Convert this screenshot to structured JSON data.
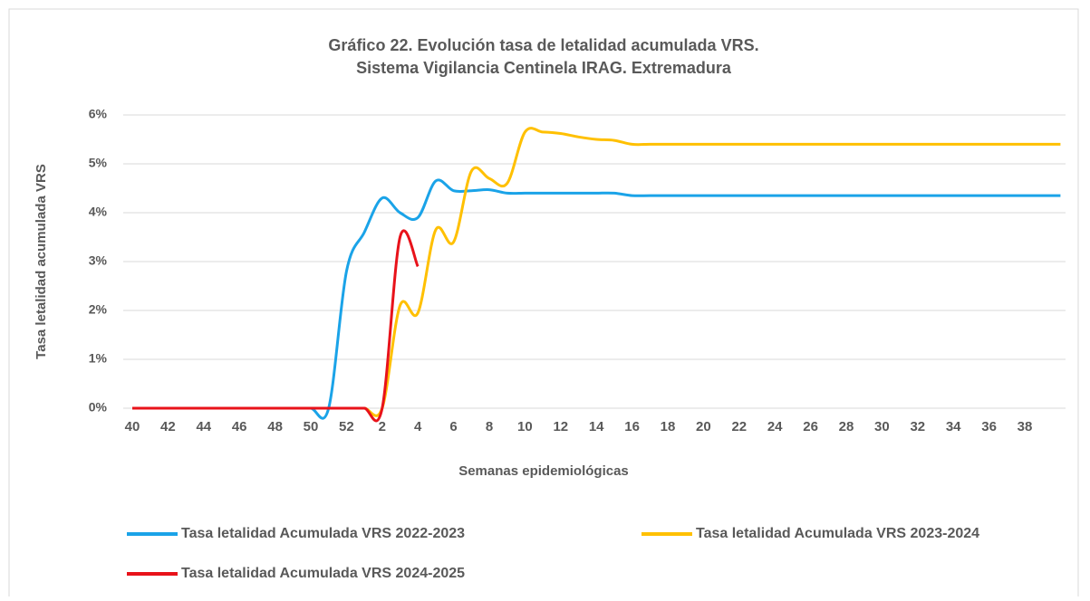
{
  "chart_data": {
    "type": "line",
    "title": [
      "Gráfico 22. Evolución tasa de letalidad acumulada VRS.",
      "Sistema Vigilancia Centinela IRAG. Extremadura"
    ],
    "x_label": "Semanas epidemiológicas",
    "y_label": "Tasa letalidad acumulada VRS",
    "categories": [
      40,
      null,
      42,
      null,
      44,
      null,
      46,
      null,
      48,
      null,
      50,
      null,
      52,
      null,
      2,
      null,
      4,
      null,
      6,
      null,
      8,
      null,
      10,
      null,
      12,
      null,
      14,
      null,
      16,
      null,
      18,
      null,
      20,
      null,
      22,
      null,
      24,
      null,
      26,
      null,
      28,
      null,
      30,
      null,
      32,
      null,
      34,
      null,
      36,
      null,
      38,
      null,
      null
    ],
    "series": [
      {
        "name": "Tasa letalidad Acumulada VRS 2022-2023",
        "color": "#1aa3e8",
        "values": [
          0,
          0,
          0,
          0,
          0,
          0,
          0,
          0,
          0,
          0,
          0,
          0,
          2.8,
          3.6,
          4.3,
          4.0,
          3.9,
          4.65,
          4.45,
          4.45,
          4.47,
          4.4,
          4.4,
          4.4,
          4.4,
          4.4,
          4.4,
          4.4,
          4.35,
          4.35,
          4.35,
          4.35,
          4.35,
          4.35,
          4.35,
          4.35,
          4.35,
          4.35,
          4.35,
          4.35,
          4.35,
          4.35,
          4.35,
          4.35,
          4.35,
          4.35,
          4.35,
          4.35,
          4.35,
          4.35,
          4.35,
          4.35,
          4.35
        ]
      },
      {
        "name": "Tasa letalidad Acumulada VRS 2023-2024",
        "color": "#ffc000",
        "values": [
          0,
          0,
          0,
          0,
          0,
          0,
          0,
          0,
          0,
          0,
          0,
          0,
          0,
          0,
          0,
          2.1,
          1.95,
          3.65,
          3.4,
          4.85,
          4.7,
          4.6,
          5.65,
          5.65,
          5.62,
          5.55,
          5.5,
          5.48,
          5.4,
          5.4,
          5.4,
          5.4,
          5.4,
          5.4,
          5.4,
          5.4,
          5.4,
          5.4,
          5.4,
          5.4,
          5.4,
          5.4,
          5.4,
          5.4,
          5.4,
          5.4,
          5.4,
          5.4,
          5.4,
          5.4,
          5.4,
          5.4,
          5.4
        ]
      },
      {
        "name": "Tasa letalidad Acumulada VRS 2024-2025",
        "color": "#e8121a",
        "values": [
          0,
          0,
          0,
          0,
          0,
          0,
          0,
          0,
          0,
          0,
          0,
          0,
          0,
          0,
          0,
          3.5,
          2.9,
          null,
          null,
          null,
          null,
          null,
          null,
          null,
          null,
          null,
          null,
          null,
          null,
          null,
          null,
          null,
          null,
          null,
          null,
          null,
          null,
          null,
          null,
          null,
          null,
          null,
          null,
          null,
          null,
          null,
          null,
          null,
          null,
          null,
          null,
          null,
          null
        ]
      }
    ],
    "ylim": [
      0,
      6
    ],
    "yticks": [
      {
        "value": 0,
        "label": "0%"
      },
      {
        "value": 1,
        "label": "1%"
      },
      {
        "value": 2,
        "label": "2%"
      },
      {
        "value": 3,
        "label": "3%"
      },
      {
        "value": 4,
        "label": "4%"
      },
      {
        "value": 5,
        "label": "5%"
      },
      {
        "value": 6,
        "label": "6%"
      }
    ],
    "grid": true,
    "legend": "bottom"
  }
}
